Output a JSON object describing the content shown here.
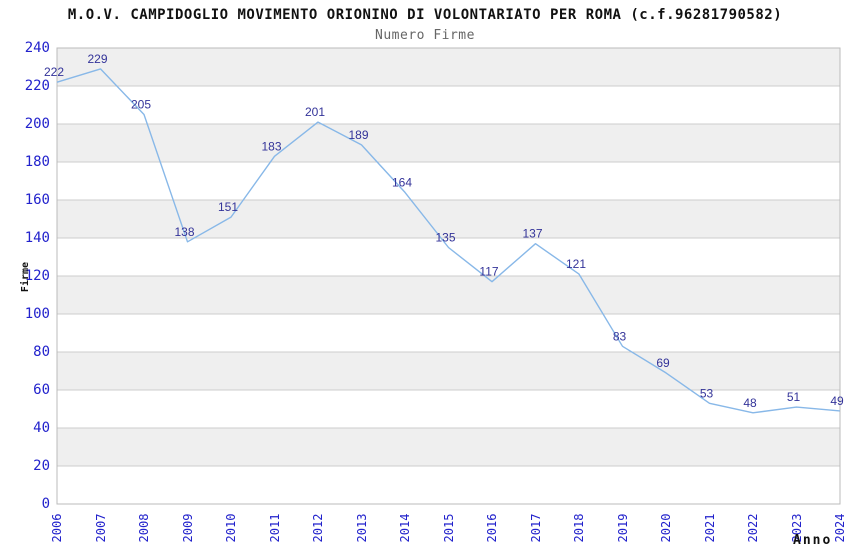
{
  "header": {
    "title": "M.O.V. CAMPIDOGLIO MOVIMENTO ORIONINO DI VOLONTARIATO PER ROMA (c.f.96281790582)",
    "subtitle": "Numero Firme"
  },
  "chart_data": {
    "type": "line",
    "title": "M.O.V. CAMPIDOGLIO MOVIMENTO ORIONINO DI VOLONTARIATO PER ROMA (c.f.96281790582)",
    "subtitle": "Numero Firme",
    "xlabel": "Anno",
    "ylabel": "Firme",
    "x": [
      "2006",
      "2007",
      "2008",
      "2009",
      "2010",
      "2011",
      "2012",
      "2013",
      "2014",
      "2015",
      "2016",
      "2017",
      "2018",
      "2019",
      "2020",
      "2021",
      "2022",
      "2023",
      "2024"
    ],
    "values": [
      222,
      229,
      205,
      138,
      151,
      183,
      201,
      189,
      164,
      135,
      117,
      137,
      121,
      83,
      69,
      53,
      48,
      51,
      49
    ],
    "ylim": [
      0,
      240
    ],
    "ytick_step": 20,
    "grid": "horizontal gridlines every 20 with alternating shaded bands",
    "legend": "none",
    "point_markers": false,
    "value_labels_shown": true,
    "colors": {
      "line": "#88b8e8",
      "value_labels": "#333399",
      "axis_tick_labels": "#2222cc",
      "band_shaded": "#efefef",
      "band_plain": "#ffffff",
      "plot_border": "#bbbbbb",
      "gridline": "#cccccc",
      "title": "#111111",
      "subtitle": "#666666",
      "axis_titles": "#111111",
      "background": "#ffffff"
    }
  }
}
